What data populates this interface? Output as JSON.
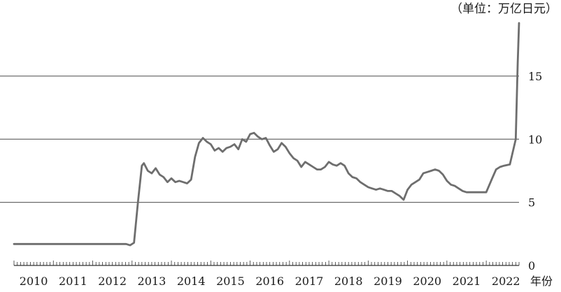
{
  "chart_data": {
    "type": "line",
    "unit_label": "（单位：万亿日元）",
    "xlabel": "年份",
    "ylabel": "",
    "title": "",
    "x_ticks": [
      "2010",
      "2011",
      "2012",
      "2013",
      "2014",
      "2015",
      "2016",
      "2017",
      "2018",
      "2019",
      "2020",
      "2021",
      "2022"
    ],
    "y_ticks": [
      0,
      5,
      10,
      15
    ],
    "ylim": [
      0,
      19.2
    ],
    "xlim": [
      2010.0,
      2022.833
    ],
    "grid": "horizontal",
    "colors": {
      "line": "#6e6e6e",
      "grid": "#6b6b6b",
      "axis": "#333333"
    },
    "series": [
      {
        "x": [
          2010.0,
          2010.5,
          2011.0,
          2011.5,
          2012.0,
          2012.3,
          2012.5,
          2012.7,
          2012.85,
          2012.95,
          2013.05,
          2013.15,
          2013.25,
          2013.3,
          2013.4,
          2013.5,
          2013.6,
          2013.7,
          2013.8,
          2013.9,
          2014.0,
          2014.1,
          2014.2,
          2014.3,
          2014.4,
          2014.5,
          2014.6,
          2014.7,
          2014.8,
          2014.9,
          2015.0,
          2015.1,
          2015.2,
          2015.3,
          2015.4,
          2015.5,
          2015.6,
          2015.7,
          2015.8,
          2015.9,
          2016.0,
          2016.1,
          2016.2,
          2016.3,
          2016.4,
          2016.5,
          2016.6,
          2016.7,
          2016.8,
          2016.9,
          2017.0,
          2017.1,
          2017.2,
          2017.3,
          2017.4,
          2017.5,
          2017.6,
          2017.7,
          2017.8,
          2017.9,
          2018.0,
          2018.1,
          2018.2,
          2018.3,
          2018.4,
          2018.5,
          2018.6,
          2018.7,
          2018.8,
          2018.9,
          2019.0,
          2019.1,
          2019.2,
          2019.3,
          2019.4,
          2019.5,
          2019.6,
          2019.7,
          2019.8,
          2019.9,
          2020.0,
          2020.1,
          2020.2,
          2020.3,
          2020.4,
          2020.5,
          2020.6,
          2020.7,
          2020.8,
          2020.9,
          2021.0,
          2021.1,
          2021.2,
          2021.3,
          2021.4,
          2021.5,
          2021.6,
          2021.7,
          2021.8,
          2021.9,
          2022.0,
          2022.15,
          2022.25,
          2022.35,
          2022.45,
          2022.6,
          2022.75,
          2022.8,
          2022.833
        ],
        "y": [
          1.7,
          1.7,
          1.7,
          1.7,
          1.7,
          1.7,
          1.7,
          1.7,
          1.7,
          1.6,
          1.8,
          5.0,
          7.9,
          8.1,
          7.5,
          7.3,
          7.7,
          7.2,
          7.0,
          6.6,
          6.9,
          6.6,
          6.7,
          6.6,
          6.5,
          6.8,
          8.6,
          9.7,
          10.1,
          9.8,
          9.6,
          9.1,
          9.3,
          9.0,
          9.3,
          9.4,
          9.6,
          9.2,
          10.0,
          9.8,
          10.4,
          10.5,
          10.2,
          10.0,
          10.1,
          9.5,
          9.0,
          9.2,
          9.7,
          9.4,
          8.9,
          8.5,
          8.3,
          7.8,
          8.2,
          8.0,
          7.8,
          7.6,
          7.6,
          7.8,
          8.2,
          8.0,
          7.9,
          8.1,
          7.9,
          7.3,
          7.0,
          6.9,
          6.6,
          6.4,
          6.2,
          6.1,
          6.0,
          6.1,
          6.0,
          5.9,
          5.9,
          5.7,
          5.5,
          5.2,
          6.0,
          6.4,
          6.6,
          6.8,
          7.3,
          7.4,
          7.5,
          7.6,
          7.5,
          7.2,
          6.7,
          6.4,
          6.3,
          6.1,
          5.9,
          5.8,
          5.8,
          5.8,
          5.8,
          5.8,
          5.8,
          6.9,
          7.6,
          7.8,
          7.9,
          8.0,
          10.0,
          16.0,
          19.2
        ]
      }
    ]
  }
}
